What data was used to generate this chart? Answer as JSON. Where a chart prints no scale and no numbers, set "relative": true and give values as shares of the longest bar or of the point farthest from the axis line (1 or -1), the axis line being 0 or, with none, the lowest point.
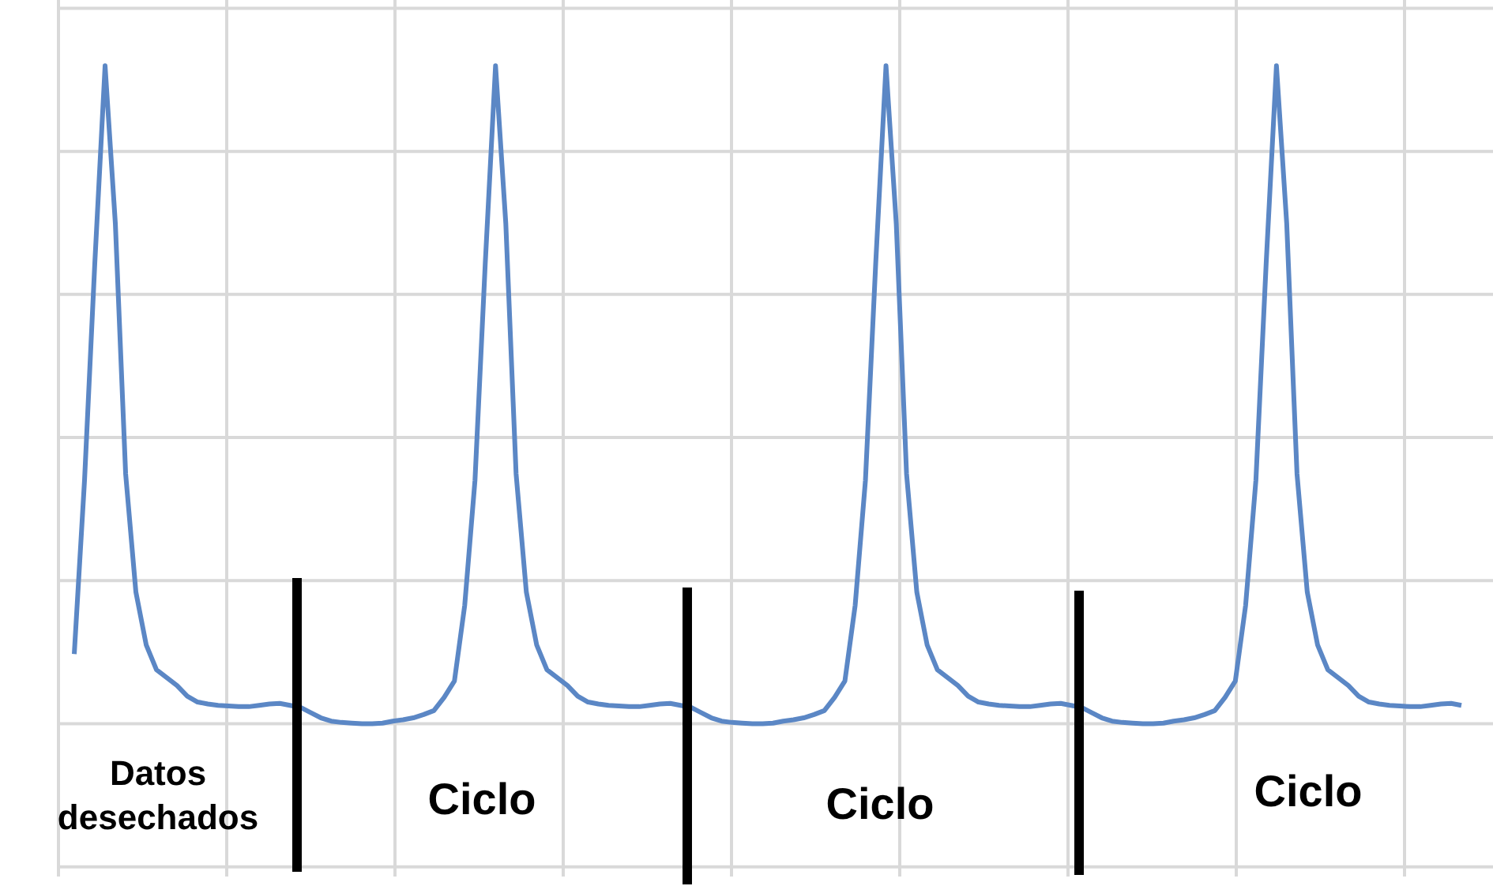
{
  "chart_data": {
    "type": "line",
    "relative": true,
    "grid": true,
    "legend": false,
    "marker": "none",
    "line_style": "solid",
    "categories": [
      null,
      null,
      null,
      null,
      null,
      null,
      null,
      null,
      null,
      null,
      null,
      null,
      null,
      null,
      null,
      null,
      null,
      null,
      null,
      null,
      null,
      null,
      null,
      null,
      null,
      null,
      null,
      null,
      null,
      null,
      null,
      null,
      null,
      null,
      null,
      null,
      null,
      null,
      null,
      null,
      null,
      null,
      null,
      null,
      null,
      null,
      null,
      null,
      null,
      null,
      null,
      null,
      null,
      null,
      null,
      null,
      null,
      null,
      null,
      null,
      null,
      null,
      null,
      null,
      null,
      null,
      null,
      null,
      null,
      null,
      null,
      null,
      null,
      null,
      null,
      null,
      null,
      null,
      null,
      null,
      null,
      null,
      null,
      null,
      null,
      null,
      null,
      null,
      null,
      null,
      null,
      null,
      null,
      null,
      null,
      null,
      null,
      null,
      null,
      null,
      null,
      null,
      null,
      null,
      null,
      null,
      null,
      null,
      null,
      null,
      null,
      null,
      null,
      null,
      null,
      null,
      null,
      null,
      null,
      null,
      null,
      null,
      null,
      null,
      null,
      null,
      null,
      null,
      null,
      null,
      null,
      null,
      null,
      null,
      null,
      null
    ],
    "series": [
      {
        "color": "#5b87c5",
        "values": [
          0.106,
          0.37,
          0.7,
          1,
          0.76,
          0.38,
          0.2,
          0.12,
          0.082,
          0.07,
          0.058,
          0.042,
          0.033,
          0.03,
          0.028,
          0.027,
          0.026,
          0.026,
          0.028,
          0.03,
          0.031,
          0.028,
          0.025,
          0.017,
          0.009,
          0.004,
          0.002,
          0.001,
          0,
          0,
          0.001,
          0.004,
          0.006,
          0.009,
          0.014,
          0.02,
          0.04,
          0.065,
          0.18,
          0.37,
          0.7,
          1,
          0.76,
          0.38,
          0.2,
          0.12,
          0.082,
          0.07,
          0.058,
          0.042,
          0.033,
          0.03,
          0.028,
          0.027,
          0.026,
          0.026,
          0.028,
          0.03,
          0.031,
          0.028,
          0.025,
          0.017,
          0.009,
          0.004,
          0.002,
          0.001,
          0,
          0,
          0.001,
          0.004,
          0.006,
          0.009,
          0.014,
          0.02,
          0.04,
          0.065,
          0.18,
          0.37,
          0.7,
          1,
          0.76,
          0.38,
          0.2,
          0.12,
          0.082,
          0.07,
          0.058,
          0.042,
          0.033,
          0.03,
          0.028,
          0.027,
          0.026,
          0.026,
          0.028,
          0.03,
          0.031,
          0.028,
          0.025,
          0.017,
          0.009,
          0.004,
          0.002,
          0.001,
          0,
          0,
          0.001,
          0.004,
          0.006,
          0.009,
          0.014,
          0.02,
          0.04,
          0.065,
          0.18,
          0.37,
          0.7,
          1,
          0.76,
          0.38,
          0.2,
          0.12,
          0.082,
          0.07,
          0.058,
          0.042,
          0.033,
          0.03,
          0.028,
          0.027,
          0.026,
          0.026,
          0.028,
          0.03,
          0.031,
          0.028
        ]
      }
    ],
    "annotations": [
      "Datos desechados",
      "Ciclo",
      "Ciclo",
      "Ciclo"
    ]
  }
}
